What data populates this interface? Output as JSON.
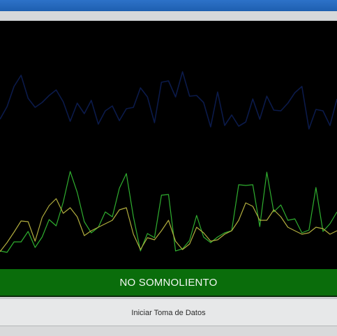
{
  "status": {
    "label": "NO SOMNOLIENTO",
    "color": "#0a6d0b"
  },
  "controls": {
    "start_button_label": "Iniciar Toma de Datos"
  },
  "chart_data": {
    "type": "line",
    "title": "",
    "xlabel": "",
    "ylabel": "",
    "grid": false,
    "ylim": [
      0,
      356
    ],
    "x": [
      0,
      1,
      2,
      3,
      4,
      5,
      6,
      7,
      8,
      9,
      10,
      11,
      12,
      13,
      14,
      15,
      16,
      17,
      18,
      19,
      20,
      21,
      22,
      23,
      24,
      25,
      26,
      27,
      28,
      29,
      30,
      31,
      32,
      33,
      34,
      35,
      36,
      37,
      38,
      39,
      40,
      41,
      42,
      43,
      44,
      45,
      46,
      47,
      48
    ],
    "series": [
      {
        "color": "#0b1a4a",
        "values": [
          215,
          233,
          262,
          278,
          245,
          232,
          239,
          249,
          257,
          240,
          212,
          238,
          223,
          242,
          208,
          227,
          234,
          213,
          230,
          232,
          260,
          247,
          210,
          268,
          270,
          247,
          283,
          248,
          249,
          239,
          204,
          254,
          206,
          221,
          205,
          211,
          244,
          215,
          248,
          228,
          227,
          238,
          253,
          262,
          201,
          229,
          227,
          206,
          244
        ]
      },
      {
        "color": "#2fae2f",
        "values": [
          26,
          24,
          39,
          39,
          54,
          31,
          46,
          71,
          62,
          96,
          140,
          110,
          68,
          52,
          60,
          82,
          75,
          116,
          137,
          75,
          26,
          51,
          45,
          106,
          107,
          26,
          29,
          41,
          77,
          46,
          38,
          46,
          52,
          55,
          121,
          120,
          121,
          61,
          139,
          82,
          92,
          70,
          72,
          52,
          56,
          117,
          54,
          65,
          82
        ]
      },
      {
        "color": "#b1ad3e",
        "values": [
          25,
          38,
          53,
          69,
          68,
          40,
          74,
          91,
          101,
          80,
          88,
          75,
          48,
          55,
          60,
          65,
          70,
          85,
          88,
          50,
          28,
          45,
          42,
          55,
          70,
          40,
          28,
          36,
          60,
          52,
          40,
          42,
          50,
          55,
          70,
          95,
          90,
          70,
          70,
          85,
          75,
          60,
          55,
          50,
          52,
          60,
          58,
          50,
          55
        ]
      }
    ]
  }
}
